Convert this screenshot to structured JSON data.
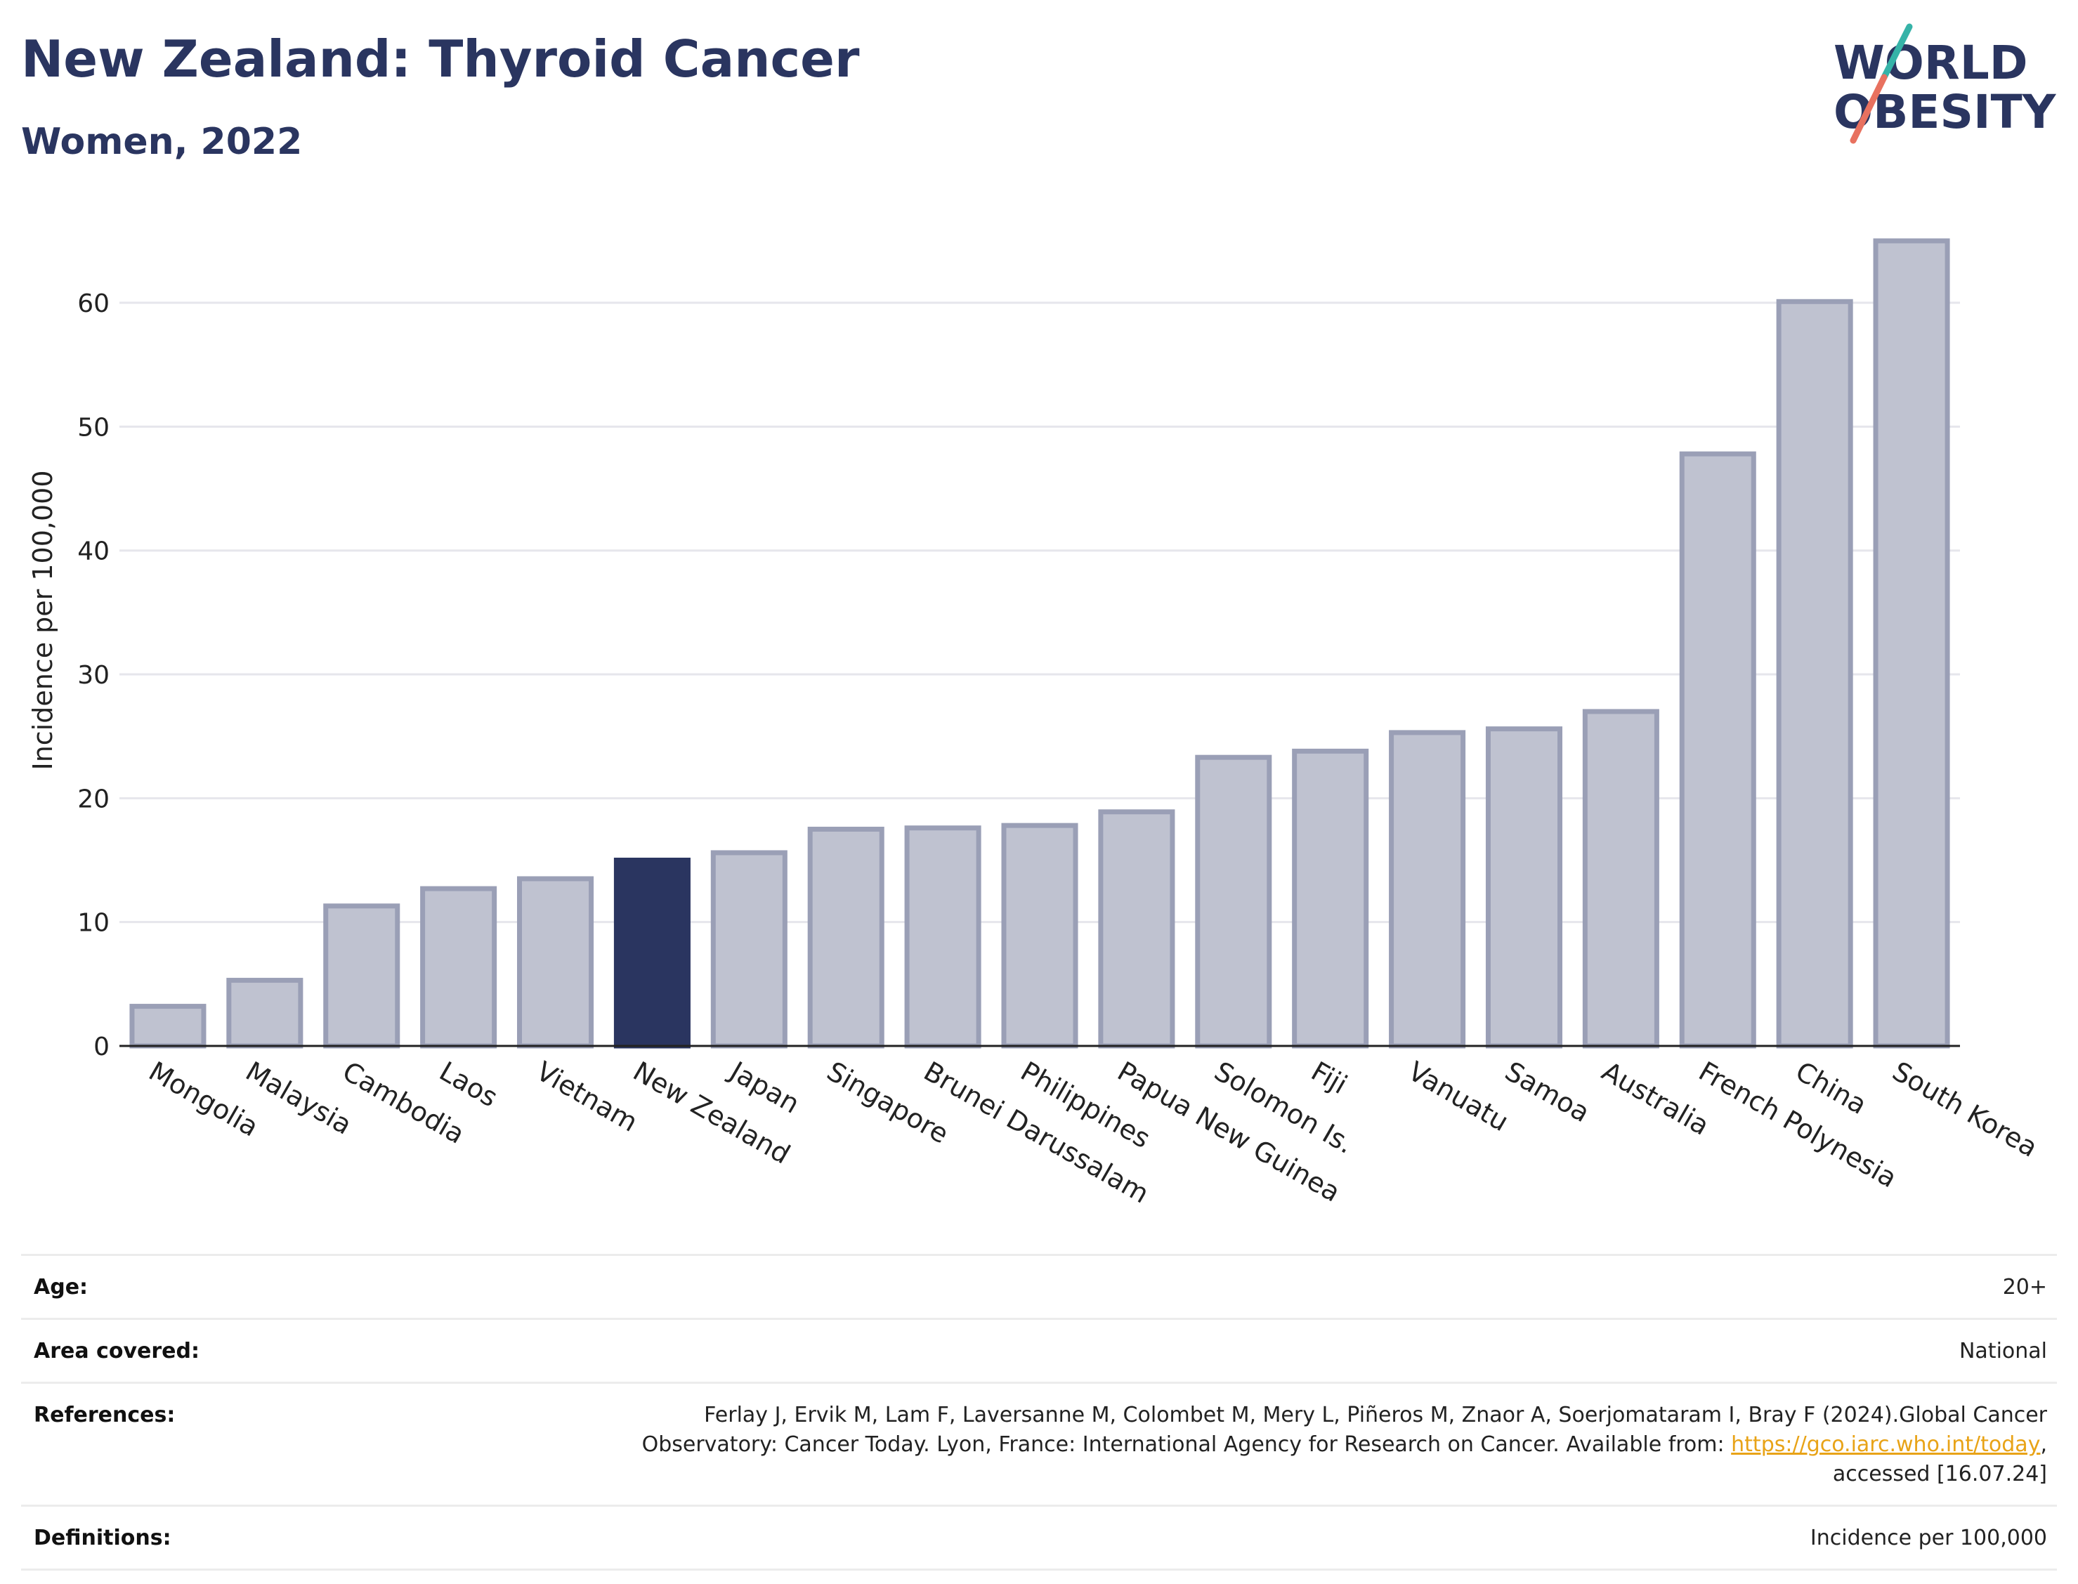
{
  "header": {
    "title": "New Zealand: Thyroid Cancer",
    "subtitle": "Women, 2022"
  },
  "logo": {
    "line1": "WORLD",
    "line2": "OBESITY"
  },
  "colors": {
    "bar": "#bfc2d0",
    "bar_border": "#9a9fb6",
    "highlight": "#2a3560",
    "title": "#2a3560",
    "link": "#e8a317"
  },
  "chart_data": {
    "type": "bar",
    "title": "New Zealand: Thyroid Cancer",
    "subtitle": "Women, 2022",
    "xlabel": "",
    "ylabel": "Incidence per 100,000",
    "ylim": [
      0,
      68
    ],
    "yticks": [
      0,
      10,
      20,
      30,
      40,
      50,
      60
    ],
    "grid": true,
    "highlight": "New Zealand",
    "categories": [
      "Mongolia",
      "Malaysia",
      "Cambodia",
      "Laos",
      "Vietnam",
      "New Zealand",
      "Japan",
      "Singapore",
      "Brunei Darussalam",
      "Philippines",
      "Papua New Guinea",
      "Solomon Is.",
      "Fiji",
      "Vanuatu",
      "Samoa",
      "Australia",
      "French Polynesia",
      "China",
      "South Korea"
    ],
    "values": [
      3.2,
      5.3,
      11.3,
      12.7,
      13.5,
      15.0,
      15.6,
      17.5,
      17.6,
      17.8,
      18.9,
      23.3,
      23.8,
      25.3,
      25.6,
      27.0,
      47.8,
      60.1,
      65.0
    ]
  },
  "info": {
    "age_label": "Age:",
    "age_value": "20+",
    "area_label": "Area covered:",
    "area_value": "National",
    "refs_label": "References:",
    "refs_text_1": "Ferlay J, Ervik M, Lam F, Laversanne M, Colombet M, Mery L, Piñeros M, Znaor A, Soerjomataram I, Bray F (2024).Global Cancer Observatory: Cancer Today. Lyon, France: International Agency for Research on Cancer. Available from: ",
    "refs_link": "https://gco.iarc.who.int/today",
    "refs_text_2": ", accessed [16.07.24]",
    "defs_label": "Definitions:",
    "defs_value": "Incidence per 100,000"
  }
}
